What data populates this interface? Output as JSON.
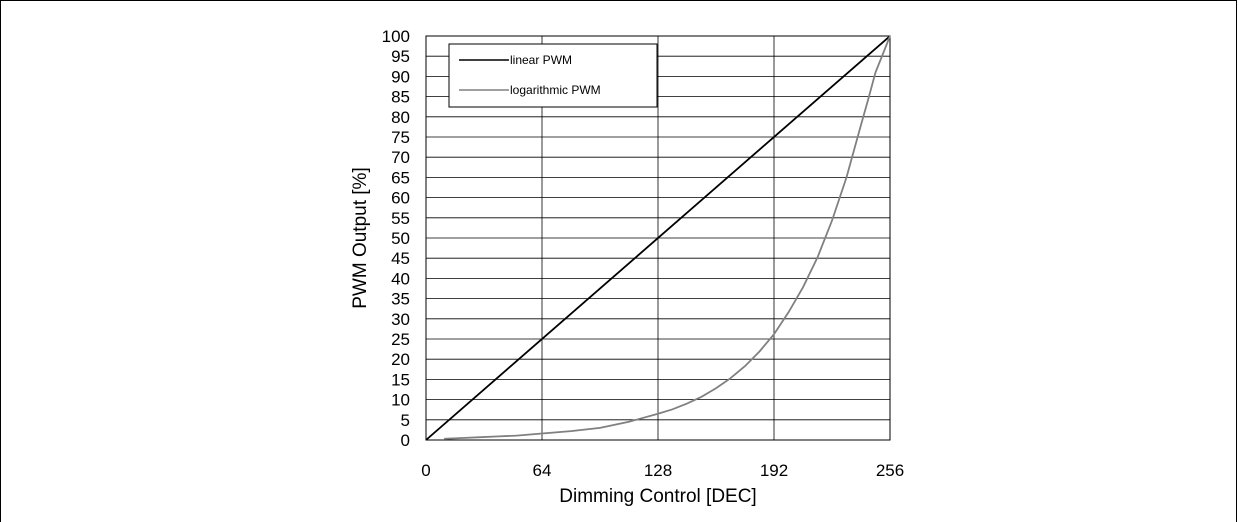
{
  "chart_data": {
    "type": "line",
    "title": "",
    "xlabel": "Dimming Control [DEC]",
    "ylabel": "PWM Output [%]",
    "xlim": [
      0,
      256
    ],
    "ylim": [
      0,
      100
    ],
    "xticks": [
      0,
      64,
      128,
      192,
      256
    ],
    "yticks": [
      0,
      5,
      10,
      15,
      20,
      25,
      30,
      35,
      40,
      45,
      50,
      55,
      60,
      65,
      70,
      75,
      80,
      85,
      90,
      95,
      100
    ],
    "grid": true,
    "legend_position": "top-left",
    "series": [
      {
        "name": "linear PWM",
        "color": "#000000",
        "x": [
          0,
          256
        ],
        "y": [
          0,
          100
        ]
      },
      {
        "name": "logarithmic PWM",
        "color": "#808080",
        "x": [
          10,
          20,
          30,
          40,
          50,
          64,
          80,
          96,
          112,
          128,
          136,
          144,
          152,
          160,
          168,
          176,
          184,
          192,
          200,
          208,
          216,
          224,
          232,
          240,
          244,
          248,
          252,
          256
        ],
        "y": [
          0.3,
          0.5,
          0.7,
          0.9,
          1.1,
          1.6,
          2.2,
          3.0,
          4.5,
          6.5,
          7.6,
          9.0,
          10.7,
          12.8,
          15.3,
          18.3,
          21.9,
          26.2,
          31.6,
          37.8,
          45.2,
          54.3,
          65.0,
          78.0,
          84.4,
          91.0,
          95.5,
          100
        ]
      }
    ]
  }
}
